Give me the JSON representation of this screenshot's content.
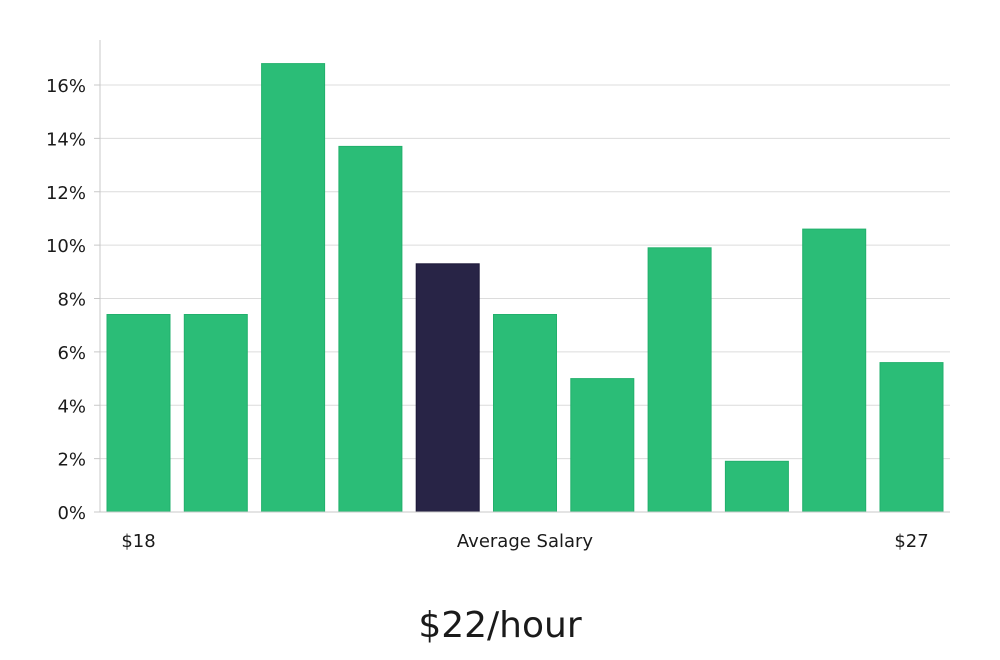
{
  "chart_data": {
    "type": "bar",
    "values": [
      7.4,
      7.4,
      16.8,
      13.7,
      9.3,
      7.4,
      5.0,
      9.9,
      1.9,
      10.6,
      5.6
    ],
    "highlight_index": 4,
    "ylim": [
      0,
      17.5
    ],
    "y_ticks": [
      0,
      2,
      4,
      6,
      8,
      10,
      12,
      14,
      16
    ],
    "y_tick_format": "%",
    "x_label_left": "$18",
    "x_label_center": "Average Salary",
    "x_label_right": "$27",
    "grid": true,
    "colors": {
      "bar": "#2bbd77",
      "bar_stroke": "#22b06c",
      "highlight": "#282446",
      "grid": "#dcdcdc",
      "axis": "#c8c8c8"
    }
  },
  "headline": "$22/hour"
}
